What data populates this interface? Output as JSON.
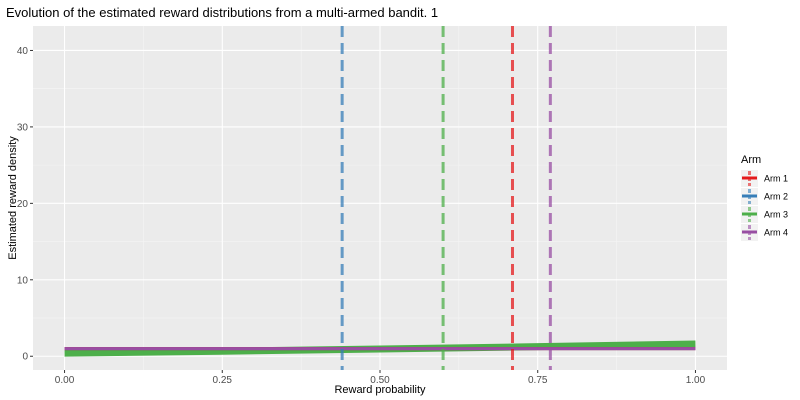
{
  "chart_data": {
    "type": "line",
    "title": "Evolution of the estimated reward distributions from a multi-armed bandit. 1",
    "xlabel": "Reward probability",
    "ylabel": "Estimated reward density",
    "xlim": [
      -0.05,
      1.05
    ],
    "ylim": [
      -1.8,
      43.2
    ],
    "x_ticks": [
      0.0,
      0.25,
      0.5,
      0.75,
      1.0
    ],
    "x_tick_labels": [
      "0.00",
      "0.25",
      "0.50",
      "0.75",
      "1.00"
    ],
    "y_ticks": [
      0,
      10,
      20,
      30,
      40
    ],
    "y_tick_labels": [
      "0",
      "10",
      "20",
      "30",
      "40"
    ],
    "grid": true,
    "legend_position": "right",
    "legend_title": "Arm",
    "series": [
      {
        "name": "Arm 1",
        "color": "#e41a1c",
        "x": [
          0.0,
          0.25,
          0.5,
          0.75,
          1.0
        ],
        "y": [
          1.0,
          1.0,
          1.0,
          1.0,
          1.0
        ],
        "vline": 0.71
      },
      {
        "name": "Arm 2",
        "color": "#377eb8",
        "x": [
          0.0,
          0.25,
          0.5,
          0.75,
          1.0
        ],
        "y": [
          1.0,
          1.0,
          1.0,
          1.0,
          1.0
        ],
        "vline": 0.44
      },
      {
        "name": "Arm 3",
        "color": "#4daf4a",
        "x": [
          0.0,
          0.25,
          0.5,
          0.75,
          1.0
        ],
        "y": [
          0.4,
          0.65,
          0.95,
          1.25,
          1.6
        ],
        "vline": 0.6
      },
      {
        "name": "Arm 4",
        "color": "#984ea3",
        "x": [
          0.0,
          0.25,
          0.5,
          0.75,
          1.0
        ],
        "y": [
          1.0,
          1.0,
          1.0,
          1.0,
          1.0
        ],
        "vline": 0.77
      }
    ]
  }
}
